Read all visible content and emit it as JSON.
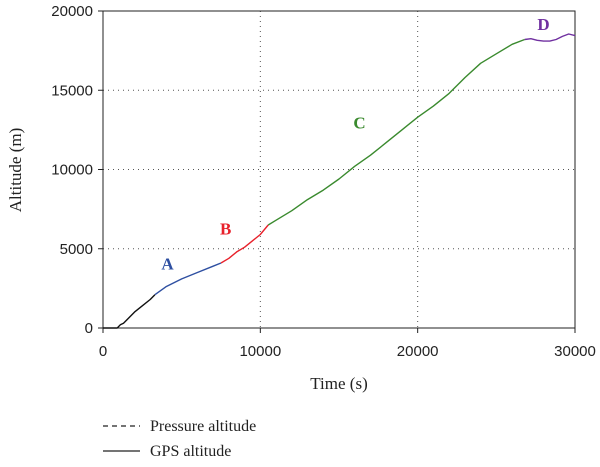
{
  "chart_data": {
    "type": "line",
    "title": "",
    "xlabel": "Time (s)",
    "ylabel": "Altitude (m)",
    "xlim": [
      0,
      30000
    ],
    "ylim": [
      0,
      20000
    ],
    "xticks": [
      0,
      10000,
      20000,
      30000
    ],
    "yticks": [
      0,
      5000,
      10000,
      15000,
      20000
    ],
    "xtick_labels": [
      "0",
      "10000",
      "20000",
      "30000"
    ],
    "ytick_labels": [
      "0",
      "5000",
      "10000",
      "15000",
      "20000"
    ],
    "grid": "dotted",
    "legend_position": "bottom-left, below plot",
    "legend": [
      {
        "label": "Pressure altitude",
        "style": "dashed",
        "color": "#222222"
      },
      {
        "label": "GPS altitude",
        "style": "solid",
        "color": "#222222"
      }
    ],
    "series": [
      {
        "name": "GPS altitude",
        "color": "#111111",
        "x": [
          0,
          900,
          1100,
          1300,
          1600,
          2000,
          2500,
          3000,
          3300
        ],
        "y": [
          0,
          0,
          200,
          300,
          600,
          1000,
          1400,
          1800,
          2100
        ]
      },
      {
        "segment": "A",
        "color": "#2e4fa1",
        "x": [
          3300,
          4000,
          5000,
          6000,
          7000,
          7500
        ],
        "y": [
          2100,
          2600,
          3100,
          3500,
          3900,
          4100
        ]
      },
      {
        "segment": "B",
        "color": "#e8212b",
        "x": [
          7500,
          8000,
          8500,
          9000,
          9500,
          10000,
          10500
        ],
        "y": [
          4100,
          4400,
          4800,
          5100,
          5500,
          5900,
          6500
        ]
      },
      {
        "segment": "C",
        "color": "#3a8a2e",
        "x": [
          10500,
          11000,
          12000,
          13000,
          14000,
          15000,
          16000,
          17000,
          18000,
          19000,
          20000,
          21000,
          22000,
          23000,
          24000,
          25000,
          26000,
          26800
        ],
        "y": [
          6500,
          6800,
          7400,
          8100,
          8700,
          9400,
          10200,
          10900,
          11700,
          12500,
          13300,
          14000,
          14800,
          15800,
          16700,
          17300,
          17900,
          18200
        ]
      },
      {
        "segment": "D",
        "color": "#7030a0",
        "x": [
          26800,
          27200,
          27600,
          28000,
          28400,
          28800,
          29200,
          29600,
          30000
        ],
        "y": [
          18200,
          18250,
          18150,
          18100,
          18100,
          18200,
          18400,
          18550,
          18450
        ]
      }
    ],
    "annotations": [
      {
        "text": "A",
        "x": 4100,
        "y": 3700,
        "color": "#2e4fa1"
      },
      {
        "text": "B",
        "x": 7800,
        "y": 5900,
        "color": "#e8212b"
      },
      {
        "text": "C",
        "x": 16300,
        "y": 12600,
        "color": "#3a8a2e"
      },
      {
        "text": "D",
        "x": 28000,
        "y": 18800,
        "color": "#7030a0"
      }
    ]
  }
}
